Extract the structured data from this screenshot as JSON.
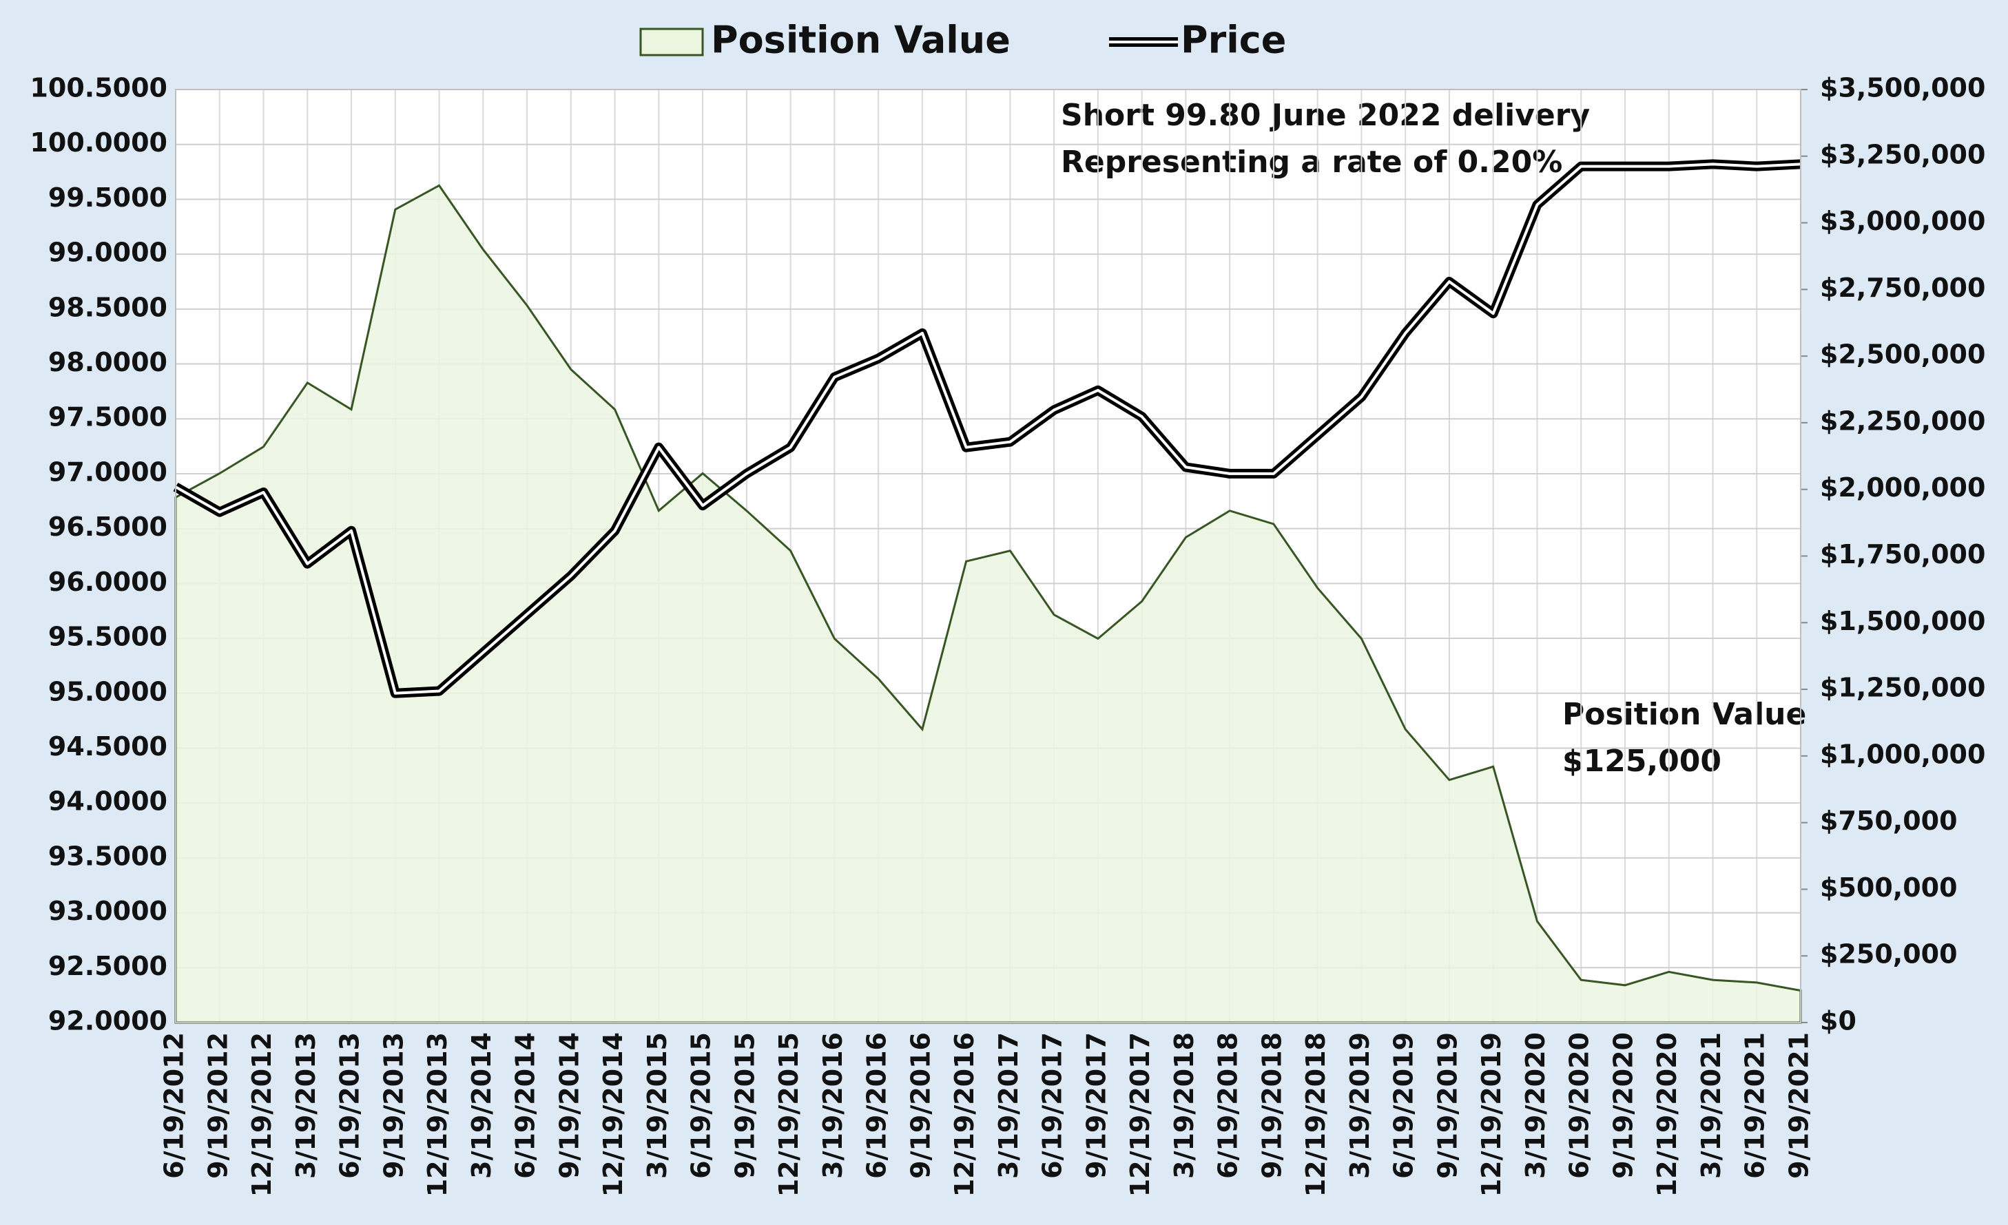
{
  "chart_data": {
    "type": "line",
    "categories": [
      "6/19/2012",
      "9/19/2012",
      "12/19/2012",
      "3/19/2013",
      "6/19/2013",
      "9/19/2013",
      "12/19/2013",
      "3/19/2014",
      "6/19/2014",
      "9/19/2014",
      "12/19/2014",
      "3/19/2015",
      "6/19/2015",
      "9/19/2015",
      "12/19/2015",
      "3/19/2016",
      "6/19/2016",
      "9/19/2016",
      "12/19/2016",
      "3/19/2017",
      "6/19/2017",
      "9/19/2017",
      "12/19/2017",
      "3/19/2018",
      "6/19/2018",
      "9/19/2018",
      "12/19/2018",
      "3/19/2019",
      "6/19/2019",
      "9/19/2019",
      "12/19/2019",
      "3/19/2020",
      "6/19/2020",
      "9/19/2020",
      "12/19/2020",
      "3/19/2021",
      "6/19/2021",
      "9/19/2021"
    ],
    "series": [
      {
        "name": "Position Value",
        "color": "#375623",
        "fill": "#ebf5e0",
        "axis": "y2",
        "values": [
          1970000,
          2060000,
          2160000,
          2400000,
          2300000,
          3050000,
          3140000,
          2900000,
          2690000,
          2450000,
          2300000,
          1920000,
          2060000,
          1920000,
          1770000,
          1440000,
          1290000,
          1100000,
          1730000,
          1770000,
          1530000,
          1440000,
          1580000,
          1820000,
          1920000,
          1870000,
          1630000,
          1440000,
          1100000,
          910000,
          960000,
          380000,
          160000,
          140000,
          190000,
          160000,
          150000,
          120000
        ]
      },
      {
        "name": "Price",
        "color": "#000000",
        "values": [
          96.88,
          96.65,
          96.83,
          96.18,
          96.48,
          95.0,
          95.02,
          95.37,
          95.72,
          96.07,
          96.48,
          97.24,
          96.71,
          97.0,
          97.24,
          97.88,
          98.05,
          98.28,
          97.24,
          97.29,
          97.58,
          97.76,
          97.52,
          97.06,
          97.0,
          97.0,
          97.35,
          97.7,
          98.28,
          98.75,
          98.46,
          99.45,
          99.8,
          99.8,
          99.8,
          99.82,
          99.8,
          99.82
        ]
      }
    ],
    "ylim": [
      92,
      100.5
    ],
    "yticks": [
      {
        "value": 92,
        "label": "92.0000"
      },
      {
        "value": 92.5,
        "label": "92.5000"
      },
      {
        "value": 93,
        "label": "93.0000"
      },
      {
        "value": 93.5,
        "label": "93.5000"
      },
      {
        "value": 94,
        "label": "94.0000"
      },
      {
        "value": 94.5,
        "label": "94.5000"
      },
      {
        "value": 95,
        "label": "95.0000"
      },
      {
        "value": 95.5,
        "label": "95.5000"
      },
      {
        "value": 96,
        "label": "96.0000"
      },
      {
        "value": 96.5,
        "label": "96.5000"
      },
      {
        "value": 97,
        "label": "97.0000"
      },
      {
        "value": 97.5,
        "label": "97.5000"
      },
      {
        "value": 98,
        "label": "98.0000"
      },
      {
        "value": 98.5,
        "label": "98.5000"
      },
      {
        "value": 99,
        "label": "99.0000"
      },
      {
        "value": 99.5,
        "label": "99.5000"
      },
      {
        "value": 100,
        "label": "100.0000"
      },
      {
        "value": 100.5,
        "label": "100.5000"
      }
    ],
    "y2lim": [
      0,
      3500000
    ],
    "y2ticks": [
      {
        "value": 0,
        "label": "$0"
      },
      {
        "value": 250000,
        "label": "$250,000"
      },
      {
        "value": 500000,
        "label": "$500,000"
      },
      {
        "value": 750000,
        "label": "$750,000"
      },
      {
        "value": 1000000,
        "label": "$1,000,000"
      },
      {
        "value": 1250000,
        "label": "$1,250,000"
      },
      {
        "value": 1500000,
        "label": "$1,500,000"
      },
      {
        "value": 1750000,
        "label": "$1,750,000"
      },
      {
        "value": 2000000,
        "label": "$2,000,000"
      },
      {
        "value": 2250000,
        "label": "$2,250,000"
      },
      {
        "value": 2500000,
        "label": "$2,500,000"
      },
      {
        "value": 2750000,
        "label": "$2,750,000"
      },
      {
        "value": 3000000,
        "label": "$3,000,000"
      },
      {
        "value": 3250000,
        "label": "$3,250,000"
      },
      {
        "value": 3500000,
        "label": "$3,500,000"
      }
    ],
    "grid": true,
    "legend": "top",
    "annotations": [
      "Short 99.80 June 2022 delivery",
      "Representing a rate of 0.20%",
      "Position Value",
      "$125,000"
    ]
  }
}
